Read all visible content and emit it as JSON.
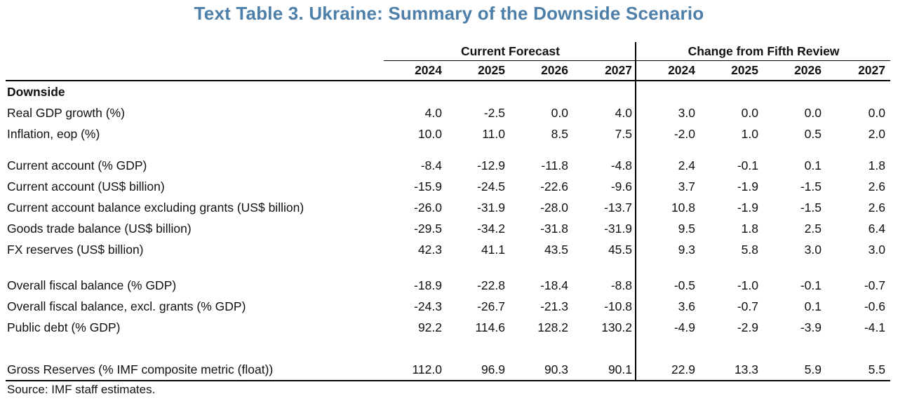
{
  "title": "Text Table 3. Ukraine: Summary of the Downside Scenario",
  "colors": {
    "title_accent": "#4d7fa8",
    "text": "#111111",
    "rule_lines": "#000000",
    "background": "#ffffff"
  },
  "table": {
    "col_groups": [
      {
        "label": "Current Forecast",
        "years": [
          "2024",
          "2025",
          "2026",
          "2027"
        ]
      },
      {
        "label": "Change from Fifth Review",
        "years": [
          "2024",
          "2025",
          "2026",
          "2027"
        ]
      }
    ],
    "rows": [
      {
        "type": "section",
        "label": "Downside"
      },
      {
        "type": "data",
        "label": "Real GDP growth (%)",
        "values": [
          "4.0",
          "-2.5",
          "0.0",
          "4.0",
          "3.0",
          "0.0",
          "0.0",
          "0.0"
        ]
      },
      {
        "type": "data",
        "label": "Inflation, eop (%)",
        "values": [
          "10.0",
          "11.0",
          "8.5",
          "7.5",
          "-2.0",
          "1.0",
          "0.5",
          "2.0"
        ]
      },
      {
        "type": "spacer",
        "size": "s"
      },
      {
        "type": "data",
        "label": "Current account (% GDP)",
        "values": [
          "-8.4",
          "-12.9",
          "-11.8",
          "-4.8",
          "2.4",
          "-0.1",
          "0.1",
          "1.8"
        ]
      },
      {
        "type": "data",
        "label": "Current account (US$ billion)",
        "values": [
          "-15.9",
          "-24.5",
          "-22.6",
          "-9.6",
          "3.7",
          "-1.9",
          "-1.5",
          "2.6"
        ]
      },
      {
        "type": "data",
        "label": "Current account balance excluding grants (US$ billion)",
        "values": [
          "-26.0",
          "-31.9",
          "-28.0",
          "-13.7",
          "10.8",
          "-1.9",
          "-1.5",
          "2.6"
        ]
      },
      {
        "type": "data",
        "label": "Goods trade balance (US$ billion)",
        "values": [
          "-29.5",
          "-34.2",
          "-31.8",
          "-31.9",
          "9.5",
          "1.8",
          "2.5",
          "6.4"
        ]
      },
      {
        "type": "data",
        "label": "FX reserves (US$ billion)",
        "values": [
          "42.3",
          "41.1",
          "43.5",
          "45.5",
          "9.3",
          "5.8",
          "3.0",
          "3.0"
        ]
      },
      {
        "type": "spacer",
        "size": "m"
      },
      {
        "type": "data",
        "label": "Overall fiscal balance (% GDP)",
        "values": [
          "-18.9",
          "-22.8",
          "-18.4",
          "-8.8",
          "-0.5",
          "-1.0",
          "-0.1",
          "-0.7"
        ]
      },
      {
        "type": "data",
        "label": "Overall fiscal balance, excl. grants (% GDP)",
        "values": [
          "-24.3",
          "-26.7",
          "-21.3",
          "-10.8",
          "3.6",
          "-0.7",
          "0.1",
          "-0.6"
        ]
      },
      {
        "type": "data",
        "label": "Public debt (% GDP)",
        "values": [
          "92.2",
          "114.6",
          "128.2",
          "130.2",
          "-4.9",
          "-2.9",
          "-3.9",
          "-4.1"
        ]
      },
      {
        "type": "spacer",
        "size": "l"
      },
      {
        "type": "data",
        "label": "Gross Reserves (% IMF composite metric (float))",
        "values": [
          "112.0",
          "96.9",
          "90.3",
          "90.1",
          "22.9",
          "13.3",
          "5.9",
          "5.5"
        ]
      }
    ],
    "source": "Source: IMF staff estimates."
  }
}
